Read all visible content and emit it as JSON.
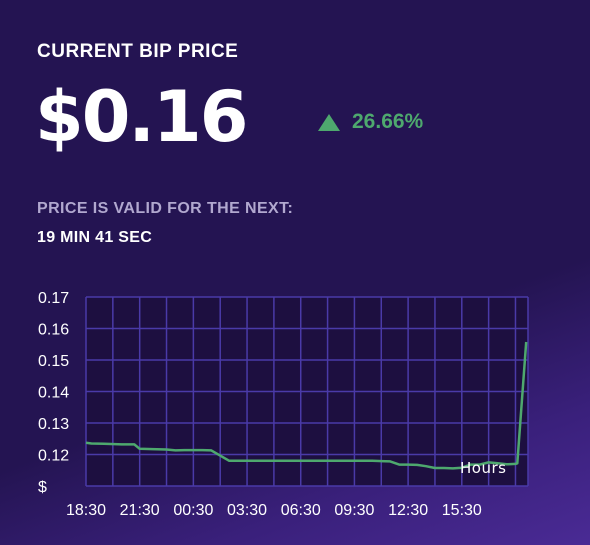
{
  "header": {
    "title": "CURRENT BIP PRICE",
    "price": "$0.16",
    "change_pct": "26.66%",
    "change_direction": "up",
    "change_icon": "triangle-up-icon"
  },
  "validity": {
    "label": "PRICE IS VALID FOR THE NEXT:",
    "time": "19 MIN 41 SEC"
  },
  "colors": {
    "background": "#241452",
    "line": "#4ea86e",
    "up": "#4ea86e"
  },
  "chart_data": {
    "type": "line",
    "xlabel": "Hours",
    "ylabel": "$",
    "x_tick_labels": [
      "18:30",
      "21:30",
      "00:30",
      "03:30",
      "06:30",
      "09:30",
      "12:30",
      "15:30"
    ],
    "y_tick_labels": [
      "0.17",
      "0.16",
      "0.15",
      "0.14",
      "0.13",
      "0.12",
      "$"
    ],
    "ylim": [
      0.11,
      0.17
    ],
    "xlim": [
      0,
      24.7
    ],
    "grid": true,
    "series": [
      {
        "x": [
          0,
          0.3,
          1,
          2,
          2.7,
          3,
          3.7,
          4.5,
          5,
          5.5,
          6,
          6.5,
          7,
          8,
          10,
          11,
          12,
          13,
          14,
          15,
          15.4,
          16,
          17,
          17.5,
          18,
          18.5,
          19,
          19.5,
          20,
          20.5,
          21,
          21.5,
          22,
          22.5,
          23,
          23.5,
          24,
          24.1,
          24.6
        ],
        "y": [
          0.1237,
          0.1235,
          0.1234,
          0.1232,
          0.1232,
          0.1218,
          0.1217,
          0.1216,
          0.1213,
          0.1214,
          0.1214,
          0.1214,
          0.1213,
          0.118,
          0.118,
          0.118,
          0.118,
          0.118,
          0.118,
          0.118,
          0.118,
          0.118,
          0.1178,
          0.1168,
          0.1168,
          0.1167,
          0.1163,
          0.1157,
          0.1157,
          0.1156,
          0.1158,
          0.1168,
          0.1168,
          0.1175,
          0.1172,
          0.1169,
          0.117,
          0.1172,
          0.1557
        ]
      }
    ]
  }
}
